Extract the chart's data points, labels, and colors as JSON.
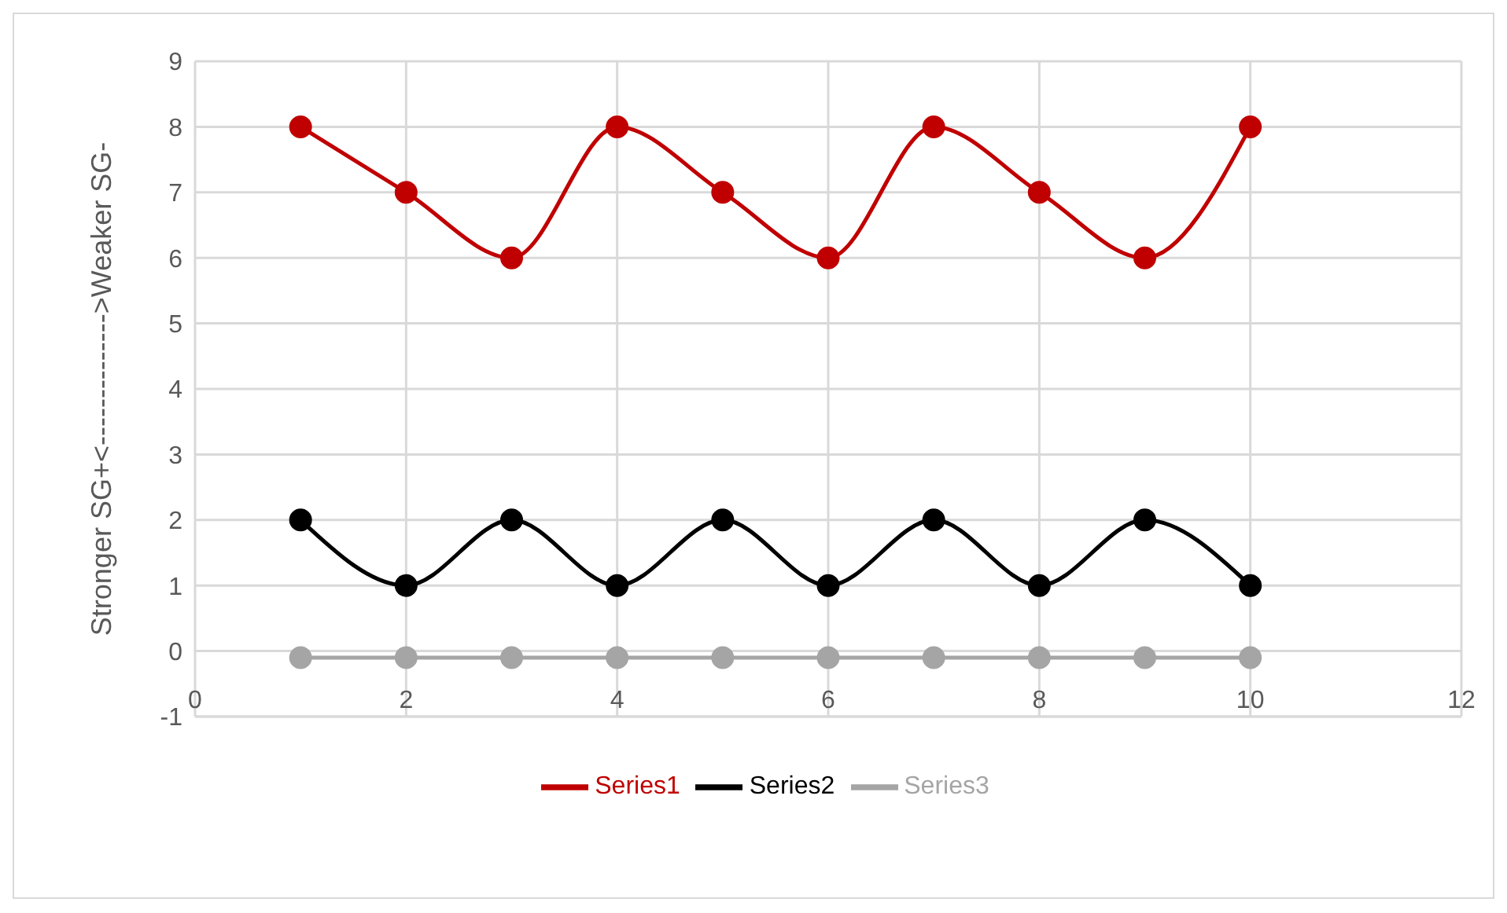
{
  "chart_data": {
    "type": "line",
    "ylabel": "Stronger SG+<-------------->Weaker  SG-",
    "x": [
      1,
      2,
      3,
      4,
      5,
      6,
      7,
      8,
      9,
      10
    ],
    "series": [
      {
        "name": "Series1",
        "color": "#c00000",
        "values": [
          8,
          7,
          6,
          8,
          7,
          6,
          8,
          7,
          6,
          8
        ]
      },
      {
        "name": "Series2",
        "color": "#000000",
        "values": [
          2,
          1,
          2,
          1,
          2,
          1,
          2,
          1,
          2,
          1
        ]
      },
      {
        "name": "Series3",
        "color": "#a5a5a5",
        "values": [
          -0.1,
          -0.1,
          -0.1,
          -0.1,
          -0.1,
          -0.1,
          -0.1,
          -0.1,
          -0.1,
          -0.1
        ]
      }
    ],
    "xlim": [
      0,
      12
    ],
    "xticks": [
      0,
      2,
      4,
      6,
      8,
      10,
      12
    ],
    "ylim": [
      -1,
      9
    ],
    "yticks": [
      -1,
      0,
      1,
      2,
      3,
      4,
      5,
      6,
      7,
      8,
      9
    ],
    "grid": true,
    "legend": "bottom",
    "marker": "circle",
    "line_style": "solid"
  }
}
